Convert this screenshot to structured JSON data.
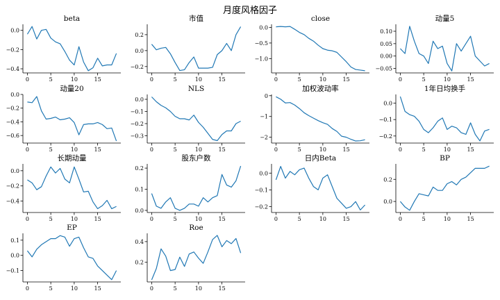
{
  "figure": {
    "suptitle": "月度风格因子"
  },
  "colors": {
    "line": "#1f77b4",
    "axis": "#000000",
    "background": "#ffffff"
  },
  "chart_data": [
    {
      "type": "line",
      "title": "beta",
      "x": [
        0,
        1,
        2,
        3,
        4,
        5,
        6,
        7,
        8,
        9,
        10,
        11,
        12,
        13,
        14,
        15,
        16,
        17,
        18,
        19
      ],
      "y": [
        -0.04,
        0.04,
        -0.09,
        0.0,
        0.01,
        -0.08,
        -0.12,
        -0.14,
        -0.22,
        -0.31,
        -0.36,
        -0.17,
        -0.33,
        -0.42,
        -0.39,
        -0.29,
        -0.37,
        -0.36,
        -0.36,
        -0.24
      ],
      "xticks": [
        0,
        5,
        10,
        15
      ],
      "yticks": [
        0.0,
        -0.2,
        -0.4
      ],
      "ytick_labels": [
        "0.0",
        "−0.2",
        "−0.4"
      ],
      "xlim": [
        -0.95,
        19.95
      ],
      "ylim": [
        -0.443,
        0.063
      ]
    },
    {
      "type": "line",
      "title": "市值",
      "x": [
        0,
        1,
        2,
        3,
        4,
        5,
        6,
        7,
        8,
        9,
        10,
        11,
        12,
        13,
        14,
        15,
        16,
        17,
        18,
        19
      ],
      "y": [
        0.08,
        0.01,
        0.03,
        0.04,
        -0.04,
        -0.15,
        -0.25,
        -0.24,
        -0.15,
        -0.08,
        -0.22,
        -0.22,
        -0.22,
        -0.21,
        -0.05,
        0.0,
        0.09,
        0.0,
        0.2,
        0.3
      ],
      "xticks": [
        0,
        5,
        10,
        15
      ],
      "yticks": [
        0.2,
        0.0,
        -0.2
      ],
      "ytick_labels": [
        "0.2",
        "0.0",
        "−0.2"
      ],
      "xlim": [
        -0.95,
        19.95
      ],
      "ylim": [
        -0.28,
        0.33
      ]
    },
    {
      "type": "line",
      "title": "close",
      "x": [
        0,
        1,
        2,
        3,
        4,
        5,
        6,
        7,
        8,
        9,
        10,
        11,
        12,
        13,
        14,
        15,
        16,
        17,
        18,
        19
      ],
      "y": [
        0.02,
        0.03,
        0.02,
        0.03,
        -0.06,
        -0.16,
        -0.23,
        -0.35,
        -0.44,
        -0.57,
        -0.68,
        -0.73,
        -0.75,
        -0.8,
        -0.95,
        -1.1,
        -1.27,
        -1.35,
        -1.37,
        -1.39
      ],
      "xticks": [
        0,
        5,
        10,
        15
      ],
      "yticks": [
        0.0,
        -0.5,
        -1.0
      ],
      "ytick_labels": [
        "0.0",
        "−0.5",
        "−1.0"
      ],
      "xlim": [
        -0.95,
        19.95
      ],
      "ylim": [
        -1.46,
        0.1
      ]
    },
    {
      "type": "line",
      "title": "动量5",
      "x": [
        0,
        1,
        2,
        3,
        4,
        5,
        6,
        7,
        8,
        9,
        10,
        11,
        12,
        13,
        14,
        15,
        16,
        17,
        18,
        19
      ],
      "y": [
        0.03,
        0.01,
        0.12,
        0.06,
        0.01,
        0.0,
        -0.03,
        0.06,
        0.03,
        0.04,
        -0.03,
        -0.06,
        0.05,
        0.02,
        0.05,
        0.08,
        0.0,
        -0.02,
        -0.04,
        -0.03
      ],
      "xticks": [
        0,
        5,
        10,
        15
      ],
      "yticks": [
        0.1,
        0.05,
        0.0,
        -0.05
      ],
      "ytick_labels": [
        "0.10",
        "0.05",
        "0.00",
        "−0.05"
      ],
      "xlim": [
        -0.95,
        19.95
      ],
      "ylim": [
        -0.068,
        0.128
      ]
    },
    {
      "type": "line",
      "title": "动量20",
      "x": [
        0,
        1,
        2,
        3,
        4,
        5,
        6,
        7,
        8,
        9,
        10,
        11,
        12,
        13,
        14,
        15,
        16,
        17,
        18,
        19
      ],
      "y": [
        -0.11,
        -0.12,
        -0.03,
        -0.24,
        -0.36,
        -0.35,
        -0.33,
        -0.37,
        -0.36,
        -0.34,
        -0.41,
        -0.59,
        -0.44,
        -0.43,
        -0.43,
        -0.41,
        -0.44,
        -0.5,
        -0.49,
        -0.68
      ],
      "xticks": [
        0,
        5,
        10,
        15
      ],
      "yticks": [
        0.0,
        -0.2,
        -0.4,
        -0.6
      ],
      "ytick_labels": [
        "0.0",
        "−0.2",
        "−0.4",
        "−0.6"
      ],
      "xlim": [
        -0.95,
        19.95
      ],
      "ylim": [
        -0.71,
        0.0
      ]
    },
    {
      "type": "line",
      "title": "NLS",
      "x": [
        0,
        1,
        2,
        3,
        4,
        5,
        6,
        7,
        8,
        9,
        10,
        11,
        12,
        13,
        14,
        15,
        16,
        17,
        18,
        19
      ],
      "y": [
        0.02,
        -0.02,
        -0.05,
        -0.07,
        -0.1,
        -0.14,
        -0.16,
        -0.16,
        -0.17,
        -0.13,
        -0.19,
        -0.23,
        -0.28,
        -0.33,
        -0.34,
        -0.29,
        -0.26,
        -0.26,
        -0.2,
        -0.18
      ],
      "xticks": [
        0,
        5,
        10,
        15
      ],
      "yticks": [
        0.0,
        -0.1,
        -0.2,
        -0.3
      ],
      "ytick_labels": [
        "0.0",
        "−0.1",
        "−0.2",
        "−0.3"
      ],
      "xlim": [
        -0.95,
        19.95
      ],
      "ylim": [
        -0.36,
        0.04
      ]
    },
    {
      "type": "line",
      "title": "加权波动率",
      "x": [
        0,
        1,
        2,
        3,
        4,
        5,
        6,
        7,
        8,
        9,
        10,
        11,
        12,
        13,
        14,
        15,
        16,
        17,
        18,
        19
      ],
      "y": [
        -0.05,
        -0.17,
        -0.35,
        -0.33,
        -0.45,
        -0.62,
        -0.82,
        -0.96,
        -1.08,
        -1.2,
        -1.3,
        -1.38,
        -1.58,
        -1.72,
        -1.95,
        -2.0,
        -2.1,
        -2.18,
        -2.17,
        -2.12
      ],
      "xticks": [
        0,
        5,
        10,
        15
      ],
      "yticks": [
        0,
        -1,
        -2
      ],
      "ytick_labels": [
        "0",
        "−1",
        "−2"
      ],
      "xlim": [
        -0.95,
        19.95
      ],
      "ylim": [
        -2.28,
        0.06
      ]
    },
    {
      "type": "line",
      "title": "1年日均换手",
      "x": [
        0,
        1,
        2,
        3,
        4,
        5,
        6,
        7,
        8,
        9,
        10,
        11,
        12,
        13,
        14,
        15,
        16,
        17,
        18,
        19
      ],
      "y": [
        0.04,
        -0.05,
        -0.07,
        -0.08,
        -0.11,
        -0.16,
        -0.18,
        -0.15,
        -0.11,
        -0.09,
        -0.16,
        -0.14,
        -0.15,
        -0.18,
        -0.19,
        -0.12,
        -0.19,
        -0.23,
        -0.17,
        -0.16
      ],
      "xticks": [
        0,
        5,
        10,
        15
      ],
      "yticks": [
        0.0,
        -0.1,
        -0.2
      ],
      "ytick_labels": [
        "0.0",
        "−0.1",
        "−0.2"
      ],
      "xlim": [
        -0.95,
        19.95
      ],
      "ylim": [
        -0.243,
        0.053
      ]
    },
    {
      "type": "line",
      "title": "长期动量",
      "x": [
        0,
        1,
        2,
        3,
        4,
        5,
        6,
        7,
        8,
        9,
        10,
        11,
        12,
        13,
        14,
        15,
        16,
        17,
        18,
        19
      ],
      "y": [
        -0.12,
        -0.16,
        -0.25,
        -0.21,
        -0.07,
        0.05,
        -0.03,
        0.03,
        -0.11,
        -0.16,
        0.05,
        -0.11,
        -0.28,
        -0.27,
        -0.41,
        -0.5,
        -0.46,
        -0.39,
        -0.5,
        -0.47
      ],
      "xticks": [
        0,
        5,
        10,
        15
      ],
      "yticks": [
        0.0,
        -0.2,
        -0.4
      ],
      "ytick_labels": [
        "0.0",
        "−0.2",
        "−0.4"
      ],
      "xlim": [
        -0.95,
        19.95
      ],
      "ylim": [
        -0.55,
        0.09
      ]
    },
    {
      "type": "line",
      "title": "股东户数",
      "x": [
        0,
        1,
        2,
        3,
        4,
        5,
        6,
        7,
        8,
        9,
        10,
        11,
        12,
        13,
        14,
        15,
        16,
        17,
        18,
        19
      ],
      "y": [
        0.08,
        0.02,
        0.01,
        0.04,
        0.06,
        0.01,
        0.0,
        0.01,
        0.03,
        0.03,
        0.02,
        0.06,
        0.04,
        0.06,
        0.07,
        0.17,
        0.12,
        0.11,
        0.14,
        0.21
      ],
      "xticks": [
        0,
        5,
        10,
        15
      ],
      "yticks": [
        0.2,
        0.1,
        0.0
      ],
      "ytick_labels": [
        "0.2",
        "0.1",
        "0.0"
      ],
      "xlim": [
        -0.95,
        19.95
      ],
      "ylim": [
        -0.01,
        0.22
      ]
    },
    {
      "type": "line",
      "title": "日内Beta",
      "x": [
        0,
        1,
        2,
        3,
        4,
        5,
        6,
        7,
        8,
        9,
        10,
        11,
        12,
        13,
        14,
        15,
        16,
        17,
        18,
        19
      ],
      "y": [
        -0.04,
        0.04,
        -0.03,
        0.01,
        -0.01,
        0.02,
        0.03,
        -0.03,
        -0.08,
        -0.1,
        -0.03,
        -0.01,
        -0.08,
        -0.15,
        -0.18,
        -0.21,
        -0.2,
        -0.17,
        -0.22,
        -0.19
      ],
      "xticks": [
        0,
        5,
        10,
        15
      ],
      "yticks": [
        0.0,
        -0.1,
        -0.2
      ],
      "ytick_labels": [
        "0.0",
        "−0.1",
        "−0.2"
      ],
      "xlim": [
        -0.95,
        19.95
      ],
      "ylim": [
        -0.235,
        0.055
      ]
    },
    {
      "type": "line",
      "title": "BP",
      "x": [
        0,
        1,
        2,
        3,
        4,
        5,
        6,
        7,
        8,
        9,
        10,
        11,
        12,
        13,
        14,
        15,
        16,
        17,
        18,
        19
      ],
      "y": [
        0.0,
        -0.05,
        -0.08,
        0.0,
        0.07,
        0.06,
        0.05,
        0.13,
        0.1,
        0.1,
        0.16,
        0.18,
        0.15,
        0.2,
        0.22,
        0.26,
        0.3,
        0.3,
        0.3,
        0.32
      ],
      "xticks": [
        0,
        5,
        10,
        15
      ],
      "yticks": [
        0.2,
        0.0
      ],
      "ytick_labels": [
        "0.2",
        "0.0"
      ],
      "xlim": [
        -0.95,
        19.95
      ],
      "ylim": [
        -0.1,
        0.34
      ]
    },
    {
      "type": "line",
      "title": "EP",
      "x": [
        0,
        1,
        2,
        3,
        4,
        5,
        6,
        7,
        8,
        9,
        10,
        11,
        12,
        13,
        14,
        15,
        16,
        17,
        18,
        19
      ],
      "y": [
        0.03,
        -0.01,
        0.04,
        0.07,
        0.09,
        0.11,
        0.11,
        0.13,
        0.12,
        0.06,
        0.11,
        0.12,
        0.05,
        -0.01,
        -0.02,
        -0.07,
        -0.1,
        -0.13,
        -0.16,
        -0.1
      ],
      "xticks": [
        0,
        5,
        10,
        15
      ],
      "yticks": [
        0.1,
        0.0,
        -0.1
      ],
      "ytick_labels": [
        "0.1",
        "0.0",
        "−0.1"
      ],
      "xlim": [
        -0.95,
        19.95
      ],
      "ylim": [
        -0.175,
        0.145
      ]
    },
    {
      "type": "line",
      "title": "Roe",
      "x": [
        0,
        1,
        2,
        3,
        4,
        5,
        6,
        7,
        8,
        9,
        10,
        11,
        12,
        13,
        14,
        15,
        16,
        17,
        18,
        19
      ],
      "y": [
        0.03,
        0.14,
        0.33,
        0.26,
        0.12,
        0.13,
        0.25,
        0.16,
        0.28,
        0.3,
        0.24,
        0.19,
        0.3,
        0.42,
        0.46,
        0.35,
        0.41,
        0.38,
        0.43,
        0.29
      ],
      "xticks": [
        0,
        5,
        10,
        15
      ],
      "yticks": [
        0.4,
        0.2
      ],
      "ytick_labels": [
        "0.4",
        "0.2"
      ],
      "xlim": [
        -0.95,
        19.95
      ],
      "ylim": [
        0.01,
        0.48
      ]
    }
  ]
}
